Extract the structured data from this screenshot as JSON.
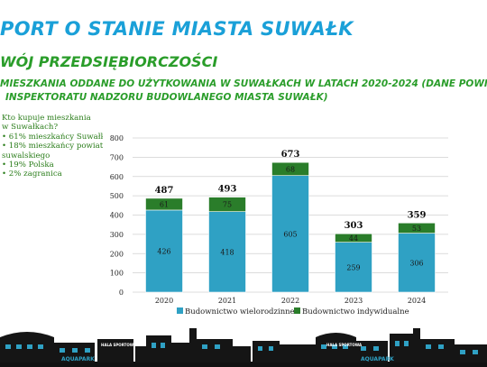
{
  "header": {
    "title": "PORT O STANIE MIASTA SUWAŁK",
    "subtitle": "WÓJ PRZEDSIĘBIORCZOŚCI",
    "chart_heading_line1": "MIESZKANIA ODDANE DO UŻYTKOWANIA W SUWAŁKACH W LATACH 2020-2024 (DANE POWIATOWEGO",
    "chart_heading_line2": "INSPEKTORATU NADZORU BUDOWLANEGO MIASTA SUWAŁK)"
  },
  "note": {
    "lines": [
      "Kto kupuje mieszkania",
      "w Suwałkach?",
      "• 61% mieszkańcy Suwałk",
      "• 18% mieszkańcy powiatu",
      "suwalskiego",
      "• 19% Polska",
      "• 2% zagranica"
    ]
  },
  "skyline": {
    "sign_left": "AQUAPARK",
    "sign_right": "AQUAPARK",
    "hall_left": "HALA SPORTOWA",
    "hall_right": "HALA SPORTOWA"
  },
  "colors": {
    "title": "#1aa0d8",
    "subtitle": "#2a9d2a",
    "series_multi": "#2fa1c4",
    "series_individual": "#2a7d2a"
  },
  "chart_data": {
    "type": "bar",
    "stacked": true,
    "categories": [
      "2020",
      "2021",
      "2022",
      "2023",
      "2024"
    ],
    "series": [
      {
        "name": "Budownictwo wielorodzinne",
        "values": [
          426,
          418,
          605,
          259,
          306
        ]
      },
      {
        "name": "Budownictwo indywidualne",
        "values": [
          61,
          75,
          68,
          44,
          53
        ]
      }
    ],
    "totals": [
      487,
      493,
      673,
      303,
      359
    ],
    "ylim": [
      0,
      800
    ],
    "yticks": [
      0,
      100,
      200,
      300,
      400,
      500,
      600,
      700,
      800
    ],
    "grid": true,
    "legend": "bottom"
  }
}
